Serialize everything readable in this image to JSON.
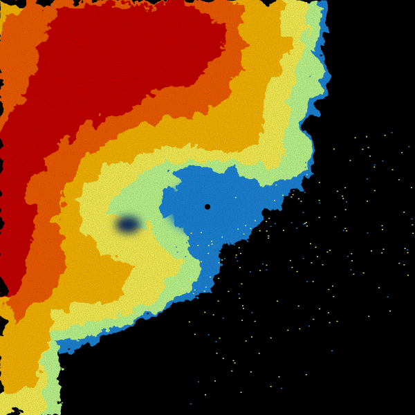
{
  "image": {
    "kind": "weather radar reflectivity sweep",
    "background_color": "#000000",
    "palette": {
      "heavy": "#c00000",
      "strong": "#e85a00",
      "moderate": "#f0b000",
      "light": "#f0e850",
      "very_light": "#b8f088",
      "weak": "#1a80d0",
      "clear_hole": "#0a2a60"
    },
    "radar_site_marker": "dot"
  }
}
